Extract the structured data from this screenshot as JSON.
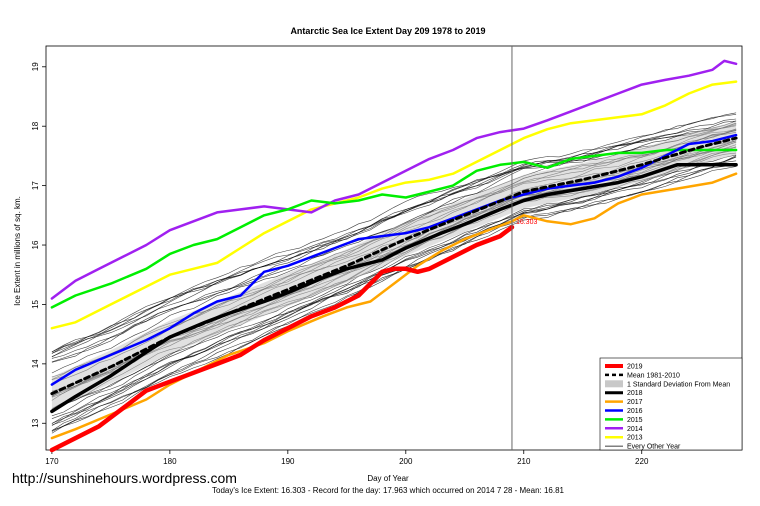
{
  "credit": "http://sunshinehours.wordpress.com",
  "chart_data": {
    "type": "line",
    "title": "Antarctic Sea Ice Extent Day 209 1978 to 2019",
    "xlabel": "Day of Year",
    "ylabel": "Ice Extent in millions of sq. km.",
    "subtitle": "Today's Ice Extent: 16.303  - Record for the day: 17.963 which occurred on 2014 7 28  - Mean: 16.81",
    "xlim": [
      169.5,
      228.5
    ],
    "ylim": [
      12.55,
      19.35
    ],
    "xticks": [
      "170",
      "180",
      "190",
      "200",
      "210",
      "220"
    ],
    "yticks": [
      "13",
      "14",
      "15",
      "16",
      "17",
      "18",
      "19"
    ],
    "grid": false,
    "legend_position": "bottom-right",
    "vline_day": 209,
    "current_label": "16.303",
    "series": [
      {
        "name": "2019",
        "color": "#ff0000",
        "width": 4.5,
        "x": [
          170,
          172,
          174,
          176,
          178,
          180,
          182,
          184,
          186,
          188,
          190,
          192,
          194,
          196,
          198,
          199,
          200,
          201,
          202,
          204,
          206,
          208,
          209
        ],
        "y": [
          12.55,
          12.75,
          12.95,
          13.25,
          13.55,
          13.7,
          13.85,
          14.0,
          14.15,
          14.4,
          14.6,
          14.8,
          14.95,
          15.15,
          15.55,
          15.6,
          15.6,
          15.55,
          15.6,
          15.8,
          16.0,
          16.15,
          16.3
        ]
      },
      {
        "name": "Mean 1981-2010",
        "color": "#000000",
        "width": 3,
        "dash": "5,4",
        "x": [
          170,
          175,
          180,
          185,
          190,
          195,
          200,
          205,
          210,
          215,
          220,
          225,
          228
        ],
        "y": [
          13.5,
          13.95,
          14.45,
          14.85,
          15.25,
          15.65,
          16.1,
          16.5,
          16.9,
          17.1,
          17.35,
          17.65,
          17.8
        ]
      },
      {
        "name": "2018",
        "color": "#000000",
        "width": 3.5,
        "x": [
          170,
          172,
          175,
          178,
          180,
          183,
          185,
          188,
          190,
          193,
          195,
          198,
          200,
          203,
          205,
          208,
          210,
          212,
          215,
          218,
          220,
          223,
          226,
          228
        ],
        "y": [
          13.2,
          13.45,
          13.8,
          14.2,
          14.45,
          14.7,
          14.85,
          15.05,
          15.2,
          15.45,
          15.6,
          15.75,
          15.95,
          16.2,
          16.35,
          16.6,
          16.75,
          16.85,
          16.95,
          17.05,
          17.15,
          17.35,
          17.35,
          17.35
        ]
      },
      {
        "name": "2017",
        "color": "#ffa500",
        "width": 2.5,
        "x": [
          170,
          172,
          175,
          178,
          180,
          183,
          185,
          188,
          190,
          193,
          195,
          197,
          199,
          201,
          203,
          205,
          207,
          209,
          210,
          212,
          214,
          216,
          218,
          220,
          223,
          226,
          228
        ],
        "y": [
          12.75,
          12.9,
          13.15,
          13.4,
          13.65,
          13.95,
          14.15,
          14.35,
          14.55,
          14.8,
          14.95,
          15.05,
          15.35,
          15.65,
          15.9,
          16.1,
          16.25,
          16.4,
          16.5,
          16.4,
          16.35,
          16.45,
          16.7,
          16.85,
          16.95,
          17.05,
          17.2
        ]
      },
      {
        "name": "2016",
        "color": "#0000ff",
        "width": 2.5,
        "x": [
          170,
          172,
          175,
          178,
          180,
          182,
          184,
          186,
          188,
          190,
          192,
          194,
          196,
          198,
          200,
          202,
          204,
          206,
          208,
          210,
          212,
          214,
          216,
          218,
          220,
          222,
          224,
          226,
          228
        ],
        "y": [
          13.65,
          13.9,
          14.15,
          14.4,
          14.6,
          14.85,
          15.05,
          15.15,
          15.55,
          15.65,
          15.8,
          15.95,
          16.1,
          16.15,
          16.2,
          16.3,
          16.45,
          16.6,
          16.75,
          16.85,
          16.95,
          17.0,
          17.05,
          17.15,
          17.3,
          17.5,
          17.7,
          17.75,
          17.85
        ]
      },
      {
        "name": "2015",
        "color": "#00ee00",
        "width": 2.5,
        "x": [
          170,
          172,
          175,
          178,
          180,
          182,
          184,
          186,
          188,
          190,
          192,
          194,
          196,
          198,
          200,
          202,
          204,
          206,
          208,
          210,
          212,
          214,
          216,
          218,
          220,
          222,
          224,
          226,
          228
        ],
        "y": [
          14.95,
          15.15,
          15.35,
          15.6,
          15.85,
          16.0,
          16.1,
          16.3,
          16.5,
          16.6,
          16.75,
          16.7,
          16.75,
          16.85,
          16.8,
          16.9,
          17.0,
          17.25,
          17.35,
          17.4,
          17.3,
          17.45,
          17.5,
          17.55,
          17.55,
          17.6,
          17.6,
          17.6,
          17.6
        ]
      },
      {
        "name": "2014",
        "color": "#a020f0",
        "width": 2.5,
        "x": [
          170,
          172,
          174,
          176,
          178,
          180,
          182,
          184,
          186,
          188,
          190,
          192,
          194,
          196,
          198,
          200,
          202,
          204,
          206,
          208,
          210,
          212,
          214,
          216,
          218,
          220,
          222,
          224,
          226,
          227,
          228
        ],
        "y": [
          15.1,
          15.4,
          15.6,
          15.8,
          16.0,
          16.25,
          16.4,
          16.55,
          16.6,
          16.65,
          16.6,
          16.55,
          16.75,
          16.85,
          17.05,
          17.25,
          17.45,
          17.6,
          17.8,
          17.9,
          17.96,
          18.1,
          18.25,
          18.4,
          18.55,
          18.7,
          18.78,
          18.85,
          18.95,
          19.1,
          19.05
        ]
      },
      {
        "name": "2013",
        "color": "#ffff00",
        "width": 2.5,
        "x": [
          170,
          172,
          175,
          178,
          180,
          182,
          184,
          186,
          188,
          190,
          192,
          194,
          196,
          198,
          200,
          202,
          204,
          206,
          208,
          210,
          212,
          214,
          216,
          218,
          220,
          222,
          224,
          226,
          228
        ],
        "y": [
          14.6,
          14.7,
          15.0,
          15.3,
          15.5,
          15.6,
          15.7,
          15.95,
          16.2,
          16.4,
          16.6,
          16.7,
          16.8,
          16.95,
          17.05,
          17.1,
          17.2,
          17.4,
          17.6,
          17.8,
          17.95,
          18.05,
          18.1,
          18.15,
          18.2,
          18.35,
          18.55,
          18.7,
          18.75
        ]
      },
      {
        "name": "Every Other Year",
        "color": "#000000",
        "width": 0.7
      }
    ]
  }
}
